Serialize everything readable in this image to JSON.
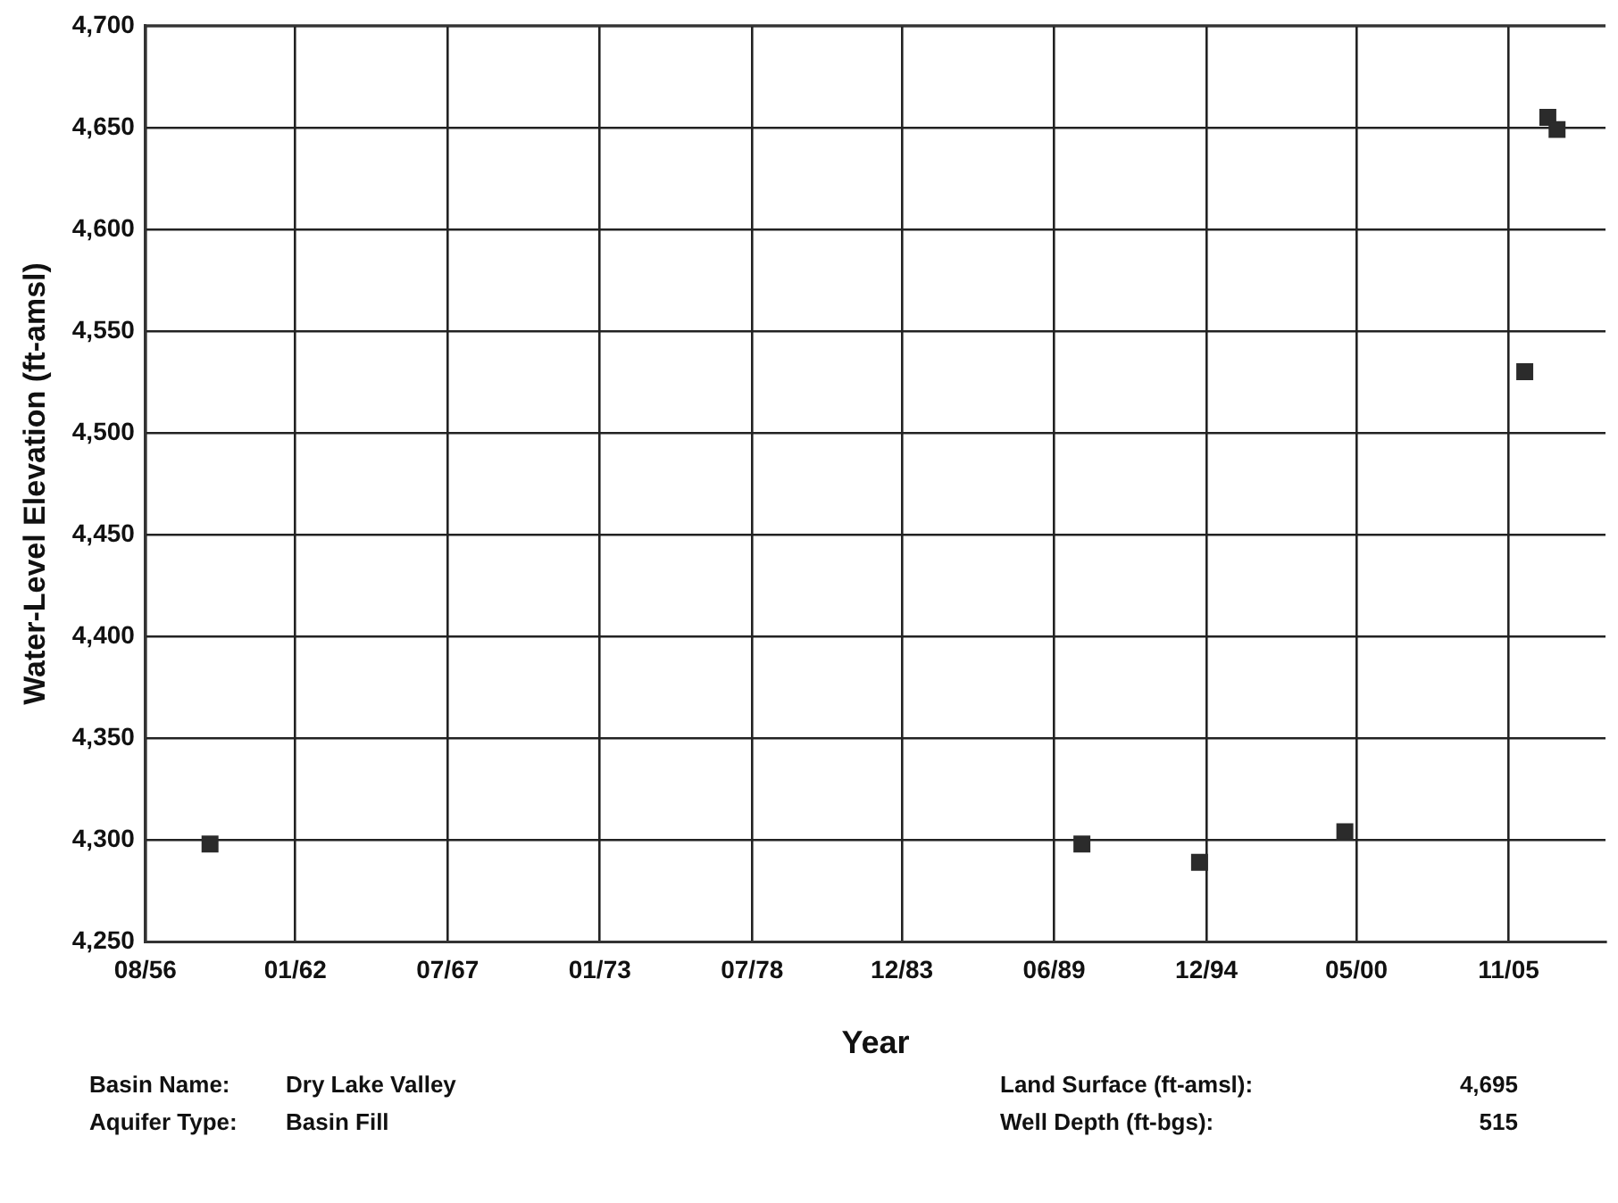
{
  "chart_data": {
    "type": "scatter",
    "xlabel": "Year",
    "ylabel": "Water-Level Elevation (ft-amsl)",
    "x": [
      "1958-12",
      "1990-06",
      "1994-09",
      "1999-12",
      "2006-06",
      "2007-04",
      "2007-08"
    ],
    "values": [
      4298,
      4298,
      4289,
      4304,
      4530,
      4655,
      4649
    ],
    "color": "#2b2b2b",
    "marker": "square",
    "grid": true,
    "legend": false,
    "xlim": [
      "1956-08",
      "2009-05"
    ],
    "xticks": [
      {
        "value": "1956-08",
        "label": "08/56"
      },
      {
        "value": "1962-01",
        "label": "01/62"
      },
      {
        "value": "1967-07",
        "label": "07/67"
      },
      {
        "value": "1973-01",
        "label": "01/73"
      },
      {
        "value": "1978-07",
        "label": "07/78"
      },
      {
        "value": "1983-12",
        "label": "12/83"
      },
      {
        "value": "1989-06",
        "label": "06/89"
      },
      {
        "value": "1994-12",
        "label": "12/94"
      },
      {
        "value": "2000-05",
        "label": "05/00"
      },
      {
        "value": "2005-11",
        "label": "11/05"
      }
    ],
    "ylim": [
      4250,
      4700
    ],
    "yticks": [
      {
        "value": 4250,
        "label": "4,250"
      },
      {
        "value": 4300,
        "label": "4,300"
      },
      {
        "value": 4350,
        "label": "4,350"
      },
      {
        "value": 4400,
        "label": "4,400"
      },
      {
        "value": 4450,
        "label": "4,450"
      },
      {
        "value": 4500,
        "label": "4,500"
      },
      {
        "value": 4550,
        "label": "4,550"
      },
      {
        "value": 4600,
        "label": "4,600"
      },
      {
        "value": 4650,
        "label": "4,650"
      },
      {
        "value": 4700,
        "label": "4,700"
      }
    ],
    "annotations": [
      "Basin Name:",
      "Dry Lake Valley",
      "Land Surface (ft-amsl):",
      "4,695",
      "Aquifer Type:",
      "Basin Fill",
      "Well Depth (ft-bgs):",
      "515"
    ]
  }
}
